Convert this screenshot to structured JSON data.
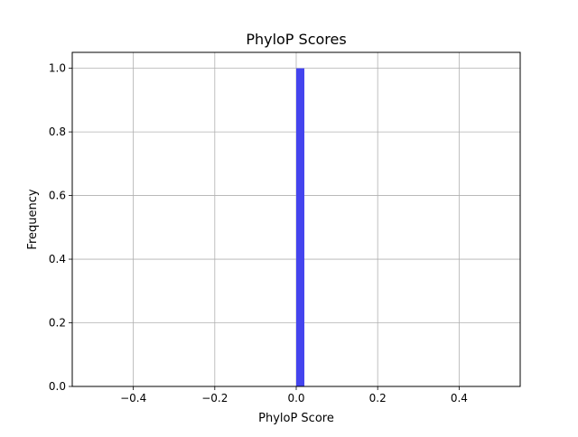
{
  "chart_data": {
    "type": "bar",
    "title": "PhyloP Scores",
    "xlabel": "PhyloP Score",
    "ylabel": "Frequency",
    "xlim": [
      -0.55,
      0.55
    ],
    "ylim": [
      0,
      1.05
    ],
    "xticks": [
      -0.4,
      -0.2,
      0.0,
      0.2,
      0.4
    ],
    "xtick_labels": [
      "−0.4",
      "−0.2",
      "0.0",
      "0.2",
      "0.4"
    ],
    "yticks": [
      0.0,
      0.2,
      0.4,
      0.6,
      0.8,
      1.0
    ],
    "ytick_labels": [
      "0.0",
      "0.2",
      "0.4",
      "0.6",
      "0.8",
      "1.0"
    ],
    "grid": true,
    "legend": "none",
    "bar_color": "#4444ee",
    "bins": [
      {
        "x0": 0.0,
        "x1": 0.02,
        "value": 1.0
      }
    ]
  }
}
